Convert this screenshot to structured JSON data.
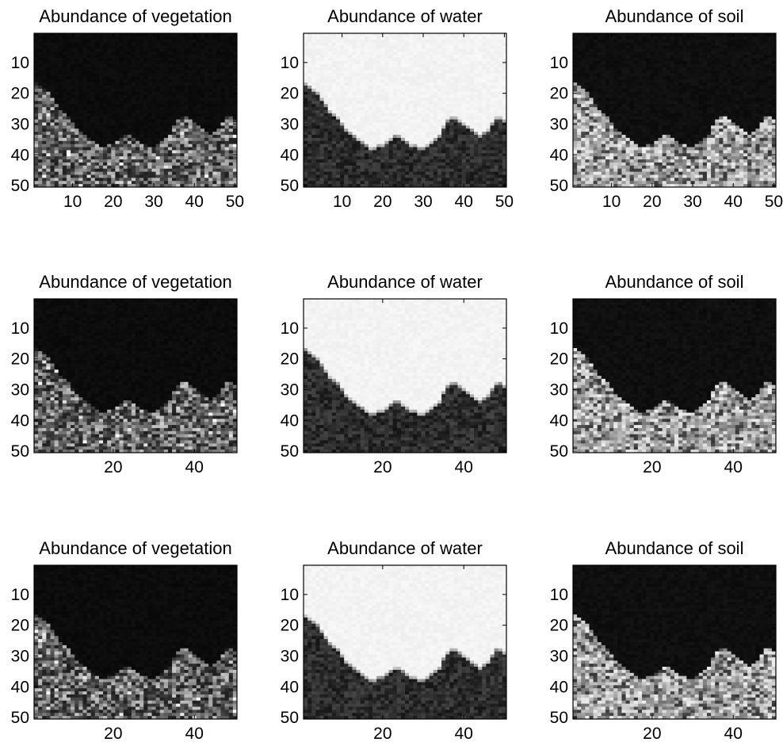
{
  "chart_data": [
    {
      "type": "heatmap",
      "title": "Abundance of vegetation",
      "material": "vegetation",
      "xlim": [
        0.5,
        50.5
      ],
      "ylim": [
        0.5,
        50.5
      ],
      "y_reversed": true,
      "xticks": [
        10,
        20,
        30,
        40,
        50
      ],
      "yticks": [
        10,
        20,
        30,
        40,
        50
      ],
      "colormap": "gray",
      "boundary_rows": [
        17,
        18,
        19,
        20,
        22,
        24,
        26,
        27,
        28,
        30,
        32,
        33,
        34,
        35,
        36,
        37,
        38,
        38,
        37,
        37,
        36,
        35,
        34,
        34,
        35,
        36,
        37,
        37,
        38,
        38,
        37,
        36,
        35,
        34,
        31,
        29,
        28,
        28,
        29,
        30,
        31,
        32,
        33,
        34,
        33,
        32,
        30,
        28,
        28,
        29
      ]
    },
    {
      "type": "heatmap",
      "title": "Abundance of water",
      "material": "water",
      "xlim": [
        0.5,
        50.5
      ],
      "ylim": [
        0.5,
        50.5
      ],
      "y_reversed": true,
      "xticks": [
        10,
        20,
        30,
        40,
        50
      ],
      "yticks": [
        10,
        20,
        30,
        40,
        50
      ],
      "colormap": "gray",
      "boundary_rows": [
        17,
        18,
        19,
        20,
        22,
        24,
        26,
        27,
        28,
        30,
        32,
        33,
        34,
        35,
        36,
        37,
        38,
        38,
        37,
        37,
        36,
        35,
        34,
        34,
        35,
        36,
        37,
        37,
        38,
        38,
        37,
        36,
        35,
        34,
        31,
        29,
        28,
        28,
        29,
        30,
        31,
        32,
        33,
        34,
        33,
        32,
        30,
        28,
        28,
        29
      ]
    },
    {
      "type": "heatmap",
      "title": "Abundance of soil",
      "material": "soil",
      "xlim": [
        0.5,
        50.5
      ],
      "ylim": [
        0.5,
        50.5
      ],
      "y_reversed": true,
      "xticks": [
        10,
        20,
        30,
        40,
        50
      ],
      "yticks": [
        10,
        20,
        30,
        40,
        50
      ],
      "colormap": "gray",
      "boundary_rows": [
        17,
        18,
        19,
        20,
        22,
        24,
        26,
        27,
        28,
        30,
        32,
        33,
        34,
        35,
        36,
        37,
        38,
        38,
        37,
        37,
        36,
        35,
        34,
        34,
        35,
        36,
        37,
        37,
        38,
        38,
        37,
        36,
        35,
        34,
        31,
        29,
        28,
        28,
        29,
        30,
        31,
        32,
        33,
        34,
        33,
        32,
        30,
        28,
        28,
        29
      ]
    },
    {
      "type": "heatmap",
      "title": "Abundance of vegetation",
      "material": "vegetation",
      "xlim": [
        0.5,
        50.5
      ],
      "ylim": [
        0.5,
        50.5
      ],
      "y_reversed": true,
      "xticks": [
        20,
        40
      ],
      "yticks": [
        10,
        20,
        30,
        40,
        50
      ],
      "colormap": "gray",
      "boundary_rows": [
        17,
        18,
        19,
        20,
        22,
        24,
        26,
        27,
        28,
        30,
        32,
        33,
        34,
        35,
        36,
        37,
        38,
        38,
        37,
        37,
        36,
        35,
        34,
        34,
        35,
        36,
        37,
        37,
        38,
        38,
        37,
        36,
        35,
        34,
        31,
        29,
        28,
        28,
        29,
        30,
        31,
        32,
        33,
        34,
        33,
        32,
        30,
        28,
        28,
        29
      ]
    },
    {
      "type": "heatmap",
      "title": "Abundance of water",
      "material": "water",
      "xlim": [
        0.5,
        50.5
      ],
      "ylim": [
        0.5,
        50.5
      ],
      "y_reversed": true,
      "xticks": [
        20,
        40
      ],
      "yticks": [
        10,
        20,
        30,
        40,
        50
      ],
      "colormap": "gray",
      "boundary_rows": [
        17,
        18,
        19,
        20,
        22,
        24,
        26,
        27,
        28,
        30,
        32,
        33,
        34,
        35,
        36,
        37,
        38,
        38,
        37,
        37,
        36,
        35,
        34,
        34,
        35,
        36,
        37,
        37,
        38,
        38,
        37,
        36,
        35,
        34,
        31,
        29,
        28,
        28,
        29,
        30,
        31,
        32,
        33,
        34,
        33,
        32,
        30,
        28,
        28,
        29
      ]
    },
    {
      "type": "heatmap",
      "title": "Abundance of soil",
      "material": "soil",
      "xlim": [
        0.5,
        50.5
      ],
      "ylim": [
        0.5,
        50.5
      ],
      "y_reversed": true,
      "xticks": [
        20,
        40
      ],
      "yticks": [
        10,
        20,
        30,
        40,
        50
      ],
      "colormap": "gray",
      "boundary_rows": [
        17,
        18,
        19,
        20,
        22,
        24,
        26,
        27,
        28,
        30,
        32,
        33,
        34,
        35,
        36,
        37,
        38,
        38,
        37,
        37,
        36,
        35,
        34,
        34,
        35,
        36,
        37,
        37,
        38,
        38,
        37,
        36,
        35,
        34,
        31,
        29,
        28,
        28,
        29,
        30,
        31,
        32,
        33,
        34,
        33,
        32,
        30,
        28,
        28,
        29
      ]
    },
    {
      "type": "heatmap",
      "title": "Abundance of vegetation",
      "material": "vegetation",
      "xlim": [
        0.5,
        50.5
      ],
      "ylim": [
        0.5,
        50.5
      ],
      "y_reversed": true,
      "xticks": [
        20,
        40
      ],
      "yticks": [
        10,
        20,
        30,
        40,
        50
      ],
      "colormap": "gray",
      "boundary_rows": [
        17,
        18,
        19,
        20,
        22,
        24,
        26,
        27,
        28,
        30,
        32,
        33,
        34,
        35,
        36,
        37,
        38,
        38,
        37,
        37,
        36,
        35,
        34,
        34,
        35,
        36,
        37,
        37,
        38,
        38,
        37,
        36,
        35,
        34,
        31,
        29,
        28,
        28,
        29,
        30,
        31,
        32,
        33,
        34,
        33,
        32,
        30,
        28,
        28,
        29
      ]
    },
    {
      "type": "heatmap",
      "title": "Abundance of water",
      "material": "water",
      "xlim": [
        0.5,
        50.5
      ],
      "ylim": [
        0.5,
        50.5
      ],
      "y_reversed": true,
      "xticks": [
        20,
        40
      ],
      "yticks": [
        10,
        20,
        30,
        40,
        50
      ],
      "colormap": "gray",
      "boundary_rows": [
        17,
        18,
        19,
        20,
        22,
        24,
        26,
        27,
        28,
        30,
        32,
        33,
        34,
        35,
        36,
        37,
        38,
        38,
        37,
        37,
        36,
        35,
        34,
        34,
        35,
        36,
        37,
        37,
        38,
        38,
        37,
        36,
        35,
        34,
        31,
        29,
        28,
        28,
        29,
        30,
        31,
        32,
        33,
        34,
        33,
        32,
        30,
        28,
        28,
        29
      ]
    },
    {
      "type": "heatmap",
      "title": "Abundance of soil",
      "material": "soil",
      "xlim": [
        0.5,
        50.5
      ],
      "ylim": [
        0.5,
        50.5
      ],
      "y_reversed": true,
      "xticks": [
        20,
        40
      ],
      "yticks": [
        10,
        20,
        30,
        40,
        50
      ],
      "colormap": "gray",
      "boundary_rows": [
        17,
        18,
        19,
        20,
        22,
        24,
        26,
        27,
        28,
        30,
        32,
        33,
        34,
        35,
        36,
        37,
        38,
        38,
        37,
        37,
        36,
        35,
        34,
        34,
        35,
        36,
        37,
        37,
        38,
        38,
        37,
        36,
        35,
        34,
        31,
        29,
        28,
        28,
        29,
        30,
        31,
        32,
        33,
        34,
        33,
        32,
        30,
        28,
        28,
        29
      ]
    }
  ]
}
